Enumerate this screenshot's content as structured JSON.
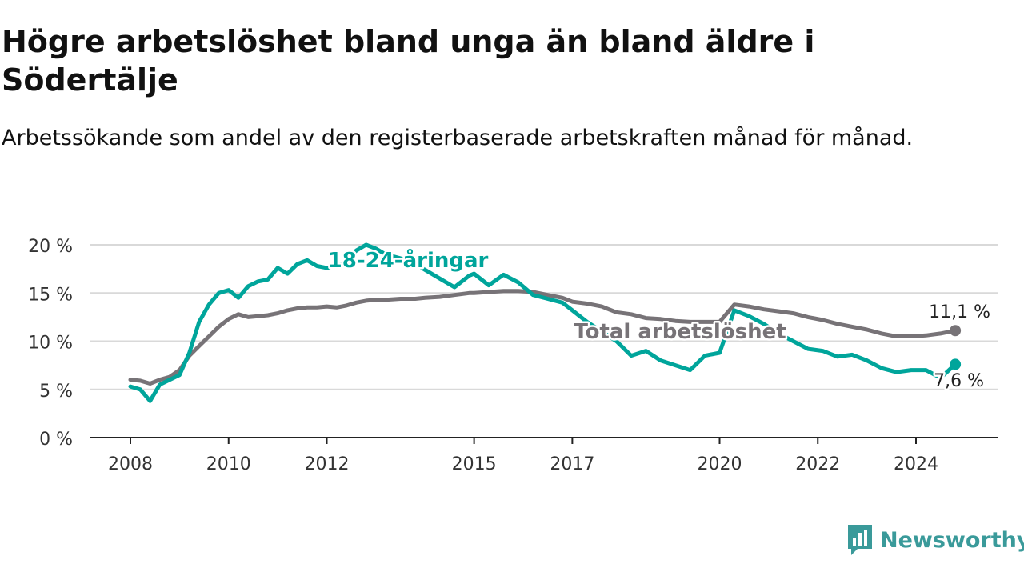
{
  "title": "Högre arbetslöshet bland unga än bland äldre i Södertälje",
  "subtitle": "Arbetssökande som andel av den registerbaserade arbetskraften månad för månad.",
  "branding": {
    "name": "Newsworthy",
    "logo_icon": "newsworthy-logo-icon",
    "color": "#3a9a9a"
  },
  "chart_data": {
    "type": "line",
    "title": "Högre arbetslöshet bland unga än bland äldre i Södertälje",
    "subtitle": "Arbetssökande som andel av den registerbaserade arbetskraften månad för månad.",
    "xlabel": "",
    "ylabel": "",
    "x_ticks": [
      2008,
      2010,
      2012,
      2015,
      2017,
      2020,
      2022,
      2024
    ],
    "y_ticks": [
      "0 %",
      "5 %",
      "10 %",
      "15 %",
      "20 %"
    ],
    "ylim": [
      0,
      20
    ],
    "grid": "horizontal",
    "legend": "direct labels on lines",
    "series": [
      {
        "name": "18-24-åringar",
        "color": "#00a59b",
        "x": [
          2008.0,
          2008.2,
          2008.4,
          2008.6,
          2008.8,
          2009.0,
          2009.2,
          2009.4,
          2009.6,
          2009.8,
          2010.0,
          2010.2,
          2010.4,
          2010.6,
          2010.8,
          2011.0,
          2011.2,
          2011.4,
          2011.6,
          2011.8,
          2012.0,
          2012.2,
          2012.4,
          2012.6,
          2012.8,
          2013.0,
          2013.2,
          2013.5,
          2013.8,
          2014.0,
          2014.3,
          2014.6,
          2014.9,
          2015.0,
          2015.3,
          2015.6,
          2015.9,
          2016.2,
          2016.5,
          2016.8,
          2017.0,
          2017.3,
          2017.6,
          2017.9,
          2018.2,
          2018.5,
          2018.8,
          2019.1,
          2019.4,
          2019.7,
          2020.0,
          2020.3,
          2020.6,
          2020.9,
          2021.2,
          2021.5,
          2021.8,
          2022.1,
          2022.4,
          2022.7,
          2023.0,
          2023.3,
          2023.6,
          2023.9,
          2024.2,
          2024.5,
          2024.8
        ],
        "values": [
          5.3,
          5.0,
          3.8,
          5.5,
          6.0,
          6.5,
          8.8,
          12.0,
          13.8,
          15.0,
          15.3,
          14.5,
          15.7,
          16.2,
          16.4,
          17.6,
          17.0,
          18.0,
          18.4,
          17.8,
          17.6,
          17.8,
          18.2,
          19.4,
          20.0,
          19.6,
          19.0,
          18.6,
          18.0,
          17.4,
          16.5,
          15.6,
          16.8,
          17.0,
          15.8,
          16.9,
          16.1,
          14.8,
          14.4,
          14.0,
          13.2,
          12.0,
          11.0,
          10.0,
          8.5,
          9.0,
          8.0,
          7.5,
          7.0,
          8.5,
          8.8,
          13.2,
          12.6,
          11.8,
          10.8,
          10.0,
          9.2,
          9.0,
          8.4,
          8.6,
          8.0,
          7.2,
          6.8,
          7.0,
          7.0,
          6.2,
          7.6
        ]
      },
      {
        "name": "Total arbetslöshet",
        "color": "#777377",
        "x": [
          2008.0,
          2008.2,
          2008.4,
          2008.6,
          2008.8,
          2009.0,
          2009.2,
          2009.4,
          2009.6,
          2009.8,
          2010.0,
          2010.2,
          2010.4,
          2010.6,
          2010.8,
          2011.0,
          2011.2,
          2011.4,
          2011.6,
          2011.8,
          2012.0,
          2012.2,
          2012.4,
          2012.6,
          2012.8,
          2013.0,
          2013.2,
          2013.5,
          2013.8,
          2014.0,
          2014.3,
          2014.6,
          2014.9,
          2015.0,
          2015.3,
          2015.6,
          2015.9,
          2016.2,
          2016.5,
          2016.8,
          2017.0,
          2017.3,
          2017.6,
          2017.9,
          2018.2,
          2018.5,
          2018.8,
          2019.1,
          2019.4,
          2019.7,
          2020.0,
          2020.3,
          2020.6,
          2020.9,
          2021.2,
          2021.5,
          2021.8,
          2022.1,
          2022.4,
          2022.7,
          2023.0,
          2023.3,
          2023.6,
          2023.9,
          2024.2,
          2024.5,
          2024.8
        ],
        "values": [
          6.0,
          5.9,
          5.6,
          6.0,
          6.3,
          7.0,
          8.5,
          9.5,
          10.5,
          11.5,
          12.3,
          12.8,
          12.5,
          12.6,
          12.7,
          12.9,
          13.2,
          13.4,
          13.5,
          13.5,
          13.6,
          13.5,
          13.7,
          14.0,
          14.2,
          14.3,
          14.3,
          14.4,
          14.4,
          14.5,
          14.6,
          14.8,
          15.0,
          15.0,
          15.1,
          15.2,
          15.2,
          15.1,
          14.8,
          14.5,
          14.1,
          13.9,
          13.6,
          13.0,
          12.8,
          12.4,
          12.3,
          12.1,
          12.0,
          12.0,
          12.0,
          13.8,
          13.6,
          13.3,
          13.1,
          12.9,
          12.5,
          12.2,
          11.8,
          11.5,
          11.2,
          10.8,
          10.5,
          10.5,
          10.6,
          10.8,
          11.1
        ]
      }
    ],
    "labels": {
      "youth_series": "18-24-åringar",
      "total_series": "Total arbetslöshet",
      "youth_end_value": "7,6 %",
      "total_end_value": "11,1 %"
    }
  }
}
